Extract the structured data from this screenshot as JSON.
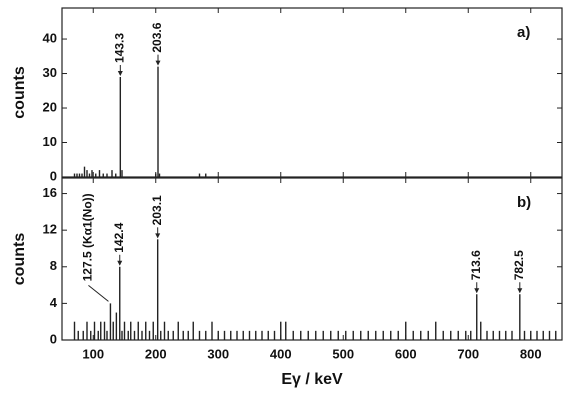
{
  "chart_data": [
    {
      "type": "spectrum",
      "panel_label": "a)",
      "ylabel": "counts",
      "color": "#222222",
      "xlim": [
        50,
        850
      ],
      "xticks": [
        100,
        200,
        300,
        400,
        500,
        600,
        700,
        800
      ],
      "ylim": [
        0,
        49
      ],
      "yticks": [
        0,
        10,
        20,
        30,
        40
      ],
      "x": [
        70,
        74,
        78,
        82,
        86,
        90,
        94,
        98,
        104,
        110,
        116,
        122,
        130,
        136,
        143.3,
        146,
        200,
        203.6,
        206,
        270,
        280
      ],
      "values": [
        1,
        1,
        1,
        1,
        3,
        2,
        1,
        2,
        1,
        2,
        1,
        1,
        2,
        1,
        29,
        2,
        1,
        32,
        1,
        1,
        1
      ],
      "annotations": [
        {
          "text": "143.3",
          "x": 143.3
        },
        {
          "text": "203.6",
          "x": 203.6
        }
      ]
    },
    {
      "type": "spectrum",
      "panel_label": "b)",
      "ylabel": "counts",
      "xlabel": "Eγ / keV",
      "color": "#222222",
      "xlim": [
        50,
        850
      ],
      "xticks": [
        100,
        200,
        300,
        400,
        500,
        600,
        700,
        800
      ],
      "ylim": [
        0,
        17.7
      ],
      "yticks": [
        0,
        4,
        8,
        12,
        16
      ],
      "x": [
        70,
        76,
        84,
        90,
        96,
        102,
        108,
        112,
        118,
        122,
        127.5,
        132,
        137,
        142.4,
        146,
        150,
        156,
        160,
        166,
        172,
        178,
        184,
        190,
        196,
        203.1,
        208,
        214,
        220,
        228,
        236,
        244,
        252,
        260,
        270,
        280,
        290,
        300,
        310,
        320,
        330,
        340,
        350,
        360,
        370,
        380,
        390,
        400,
        408,
        420,
        432,
        444,
        456,
        468,
        480,
        492,
        504,
        516,
        528,
        540,
        552,
        564,
        576,
        588,
        600,
        612,
        624,
        636,
        648,
        660,
        672,
        684,
        696,
        704,
        713.6,
        720,
        730,
        740,
        750,
        760,
        770,
        782.5,
        790,
        800,
        810,
        820,
        830,
        840
      ],
      "values": [
        2,
        1,
        1,
        2,
        1,
        2,
        1,
        2,
        2,
        1,
        4,
        2,
        3,
        8,
        1,
        2,
        1,
        2,
        1,
        2,
        1,
        2,
        1,
        2,
        11,
        1,
        2,
        1,
        1,
        2,
        1,
        1,
        2,
        1,
        1,
        2,
        1,
        1,
        1,
        1,
        1,
        1,
        1,
        1,
        1,
        1,
        2,
        2,
        1,
        1,
        1,
        1,
        1,
        1,
        1,
        1,
        1,
        1,
        1,
        1,
        1,
        1,
        1,
        2,
        1,
        1,
        1,
        2,
        1,
        1,
        1,
        1,
        1,
        5,
        2,
        1,
        1,
        1,
        1,
        1,
        5,
        1,
        1,
        1,
        1,
        1,
        1
      ],
      "annotations": [
        {
          "text": "127.5 (Kα1(No))",
          "x": 127.5
        },
        {
          "text": "142.4",
          "x": 142.4
        },
        {
          "text": "203.1",
          "x": 203.1
        },
        {
          "text": "713.6",
          "x": 713.6
        },
        {
          "text": "782.5",
          "x": 782.5
        }
      ]
    }
  ]
}
